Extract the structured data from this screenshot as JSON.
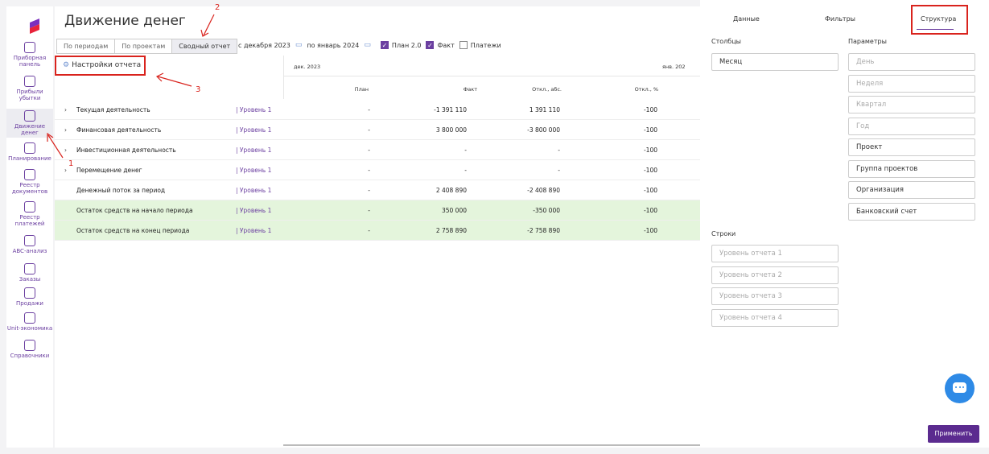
{
  "sidebar": {
    "items": [
      {
        "label1": "Приборная",
        "label2": "панель",
        "icon": "dashboard-icon"
      },
      {
        "label1": "Прибыли",
        "label2": "убытки",
        "icon": "chart-icon"
      },
      {
        "label1": "Движение",
        "label2": "денег",
        "icon": "coins-icon"
      },
      {
        "label1": "Планирование",
        "label2": "",
        "icon": "planning-icon"
      },
      {
        "label1": "Реестр",
        "label2": "документов",
        "icon": "documents-icon"
      },
      {
        "label1": "Реестр",
        "label2": "платежей",
        "icon": "wallet-icon"
      },
      {
        "label1": "ABC-анализ",
        "label2": "",
        "icon": "abc-icon"
      },
      {
        "label1": "Заказы",
        "label2": "",
        "icon": "orders-icon"
      },
      {
        "label1": "Продажи",
        "label2": "",
        "icon": "dollar-icon"
      },
      {
        "label1": "Unit-экономика",
        "label2": "",
        "icon": "unit-icon"
      },
      {
        "label1": "Справочники",
        "label2": "",
        "icon": "folder-icon"
      }
    ]
  },
  "page": {
    "title": "Движение денег"
  },
  "tabs": [
    "По периодам",
    "По проектам",
    "Сводный отчет"
  ],
  "filters": {
    "from": "с декабря 2023",
    "to": "по январь 2024",
    "plan": "План 2.0",
    "fact": "Факт",
    "payments": "Платежи"
  },
  "settings_label": "Настройки отчета",
  "grid": {
    "period1": "дек. 2023",
    "period2": "янв. 202",
    "cols": [
      "План",
      "Факт",
      "Откл., абс.",
      "Откл., %"
    ]
  },
  "rows": [
    {
      "name": "Текущая деятельность",
      "level": "| Уровень 1",
      "plan": "-",
      "fact": "-1 391 110",
      "abs": "1 391 110",
      "pct": "-100",
      "chev": true,
      "green": false
    },
    {
      "name": "Финансовая деятельность",
      "level": "| Уровень 1",
      "plan": "-",
      "fact": "3 800 000",
      "abs": "-3 800 000",
      "pct": "-100",
      "chev": true,
      "green": false
    },
    {
      "name": "Инвестиционная деятельность",
      "level": "| Уровень 1",
      "plan": "-",
      "fact": "-",
      "abs": "-",
      "pct": "-100",
      "chev": true,
      "green": false
    },
    {
      "name": "Перемещение денег",
      "level": "| Уровень 1",
      "plan": "-",
      "fact": "-",
      "abs": "-",
      "pct": "-100",
      "chev": true,
      "green": false
    },
    {
      "name": "Денежный поток за период",
      "level": "| Уровень 1",
      "plan": "-",
      "fact": "2 408 890",
      "abs": "-2 408 890",
      "pct": "-100",
      "chev": false,
      "green": false
    },
    {
      "name": "Остаток средств на начало периода",
      "level": "| Уровень 1",
      "plan": "-",
      "fact": "350 000",
      "abs": "-350 000",
      "pct": "-100",
      "chev": false,
      "green": true
    },
    {
      "name": "Остаток средств на конец периода",
      "level": "| Уровень 1",
      "plan": "-",
      "fact": "2 758 890",
      "abs": "-2 758 890",
      "pct": "-100",
      "chev": false,
      "green": true
    }
  ],
  "panel": {
    "tabs": [
      "Данные",
      "Фильтры",
      "Структура"
    ],
    "columns_label": "Столбцы",
    "params_label": "Параметры",
    "rows_label": "Строки",
    "column_value": "Месяц",
    "params": [
      {
        "label": "День",
        "dim": true
      },
      {
        "label": "Неделя",
        "dim": true
      },
      {
        "label": "Квартал",
        "dim": true
      },
      {
        "label": "Год",
        "dim": true
      },
      {
        "label": "Проект",
        "dim": false
      },
      {
        "label": "Группа проектов",
        "dim": false
      },
      {
        "label": "Организация",
        "dim": false
      },
      {
        "label": "Банковский счет",
        "dim": false
      }
    ],
    "row_placeholders": [
      "Уровень отчета 1",
      "Уровень отчета 2",
      "Уровень отчета 3",
      "Уровень отчета 4"
    ],
    "apply": "Применить"
  },
  "annotations": [
    "1",
    "2",
    "3"
  ],
  "colors": {
    "accent": "#6b3fa0",
    "highlight": "#d9231d",
    "green_row": "#e4f5dc",
    "chat": "#2e8ae6"
  }
}
